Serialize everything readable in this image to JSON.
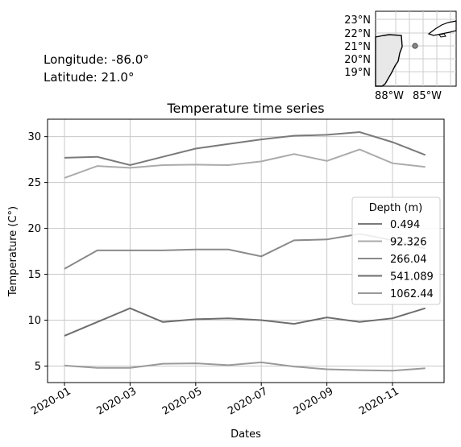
{
  "location": {
    "longitude_text": "Longitude: -86.0°",
    "latitude_text": "Latitude: 21.0°",
    "longitude": -86.0,
    "latitude": 21.0
  },
  "inset_map": {
    "lat_labels": [
      "23°N",
      "22°N",
      "21°N",
      "20°N",
      "19°N"
    ],
    "lon_labels": [
      "88°W",
      "85°W"
    ],
    "marker_color": "#888888",
    "land_color": "#e8e8e8"
  },
  "chart_data": {
    "type": "line",
    "title": "Temperature time series",
    "xlabel": "Dates",
    "ylabel": "Temperature (C°)",
    "x": [
      "2020-01",
      "2020-02",
      "2020-03",
      "2020-04",
      "2020-05",
      "2020-06",
      "2020-07",
      "2020-08",
      "2020-09",
      "2020-10",
      "2020-11",
      "2020-12"
    ],
    "x_tick_labels": [
      "2020-01",
      "2020-03",
      "2020-05",
      "2020-07",
      "2020-09",
      "2020-11"
    ],
    "ylim": [
      3.2,
      31.9
    ],
    "y_ticks": [
      5,
      10,
      15,
      20,
      25,
      30
    ],
    "grid": true,
    "legend_title": "Depth (m)",
    "legend_position": "right",
    "series": [
      {
        "name": "0.494",
        "color": "#7a7a7a",
        "values": [
          27.7,
          27.8,
          26.9,
          27.8,
          28.7,
          29.2,
          29.7,
          30.1,
          30.2,
          30.5,
          29.4,
          28.0
        ]
      },
      {
        "name": "92.326",
        "color": "#ababab",
        "values": [
          25.5,
          26.8,
          26.6,
          26.9,
          26.95,
          26.9,
          27.3,
          28.1,
          27.35,
          28.6,
          27.1,
          26.7
        ]
      },
      {
        "name": "266.04",
        "color": "#8a8a8a",
        "values": [
          15.6,
          17.6,
          17.6,
          17.6,
          17.7,
          17.7,
          16.95,
          18.7,
          18.8,
          19.4,
          18.7,
          17.8
        ]
      },
      {
        "name": "541.089",
        "color": "#6e6e6e",
        "values": [
          8.3,
          9.8,
          11.3,
          9.8,
          10.1,
          10.2,
          10.0,
          9.6,
          10.3,
          9.8,
          10.2,
          11.3
        ]
      },
      {
        "name": "1062.44",
        "color": "#9a9a9a",
        "values": [
          5.05,
          4.8,
          4.8,
          5.25,
          5.3,
          5.1,
          5.4,
          4.95,
          4.65,
          4.55,
          4.5,
          4.75
        ]
      }
    ]
  }
}
